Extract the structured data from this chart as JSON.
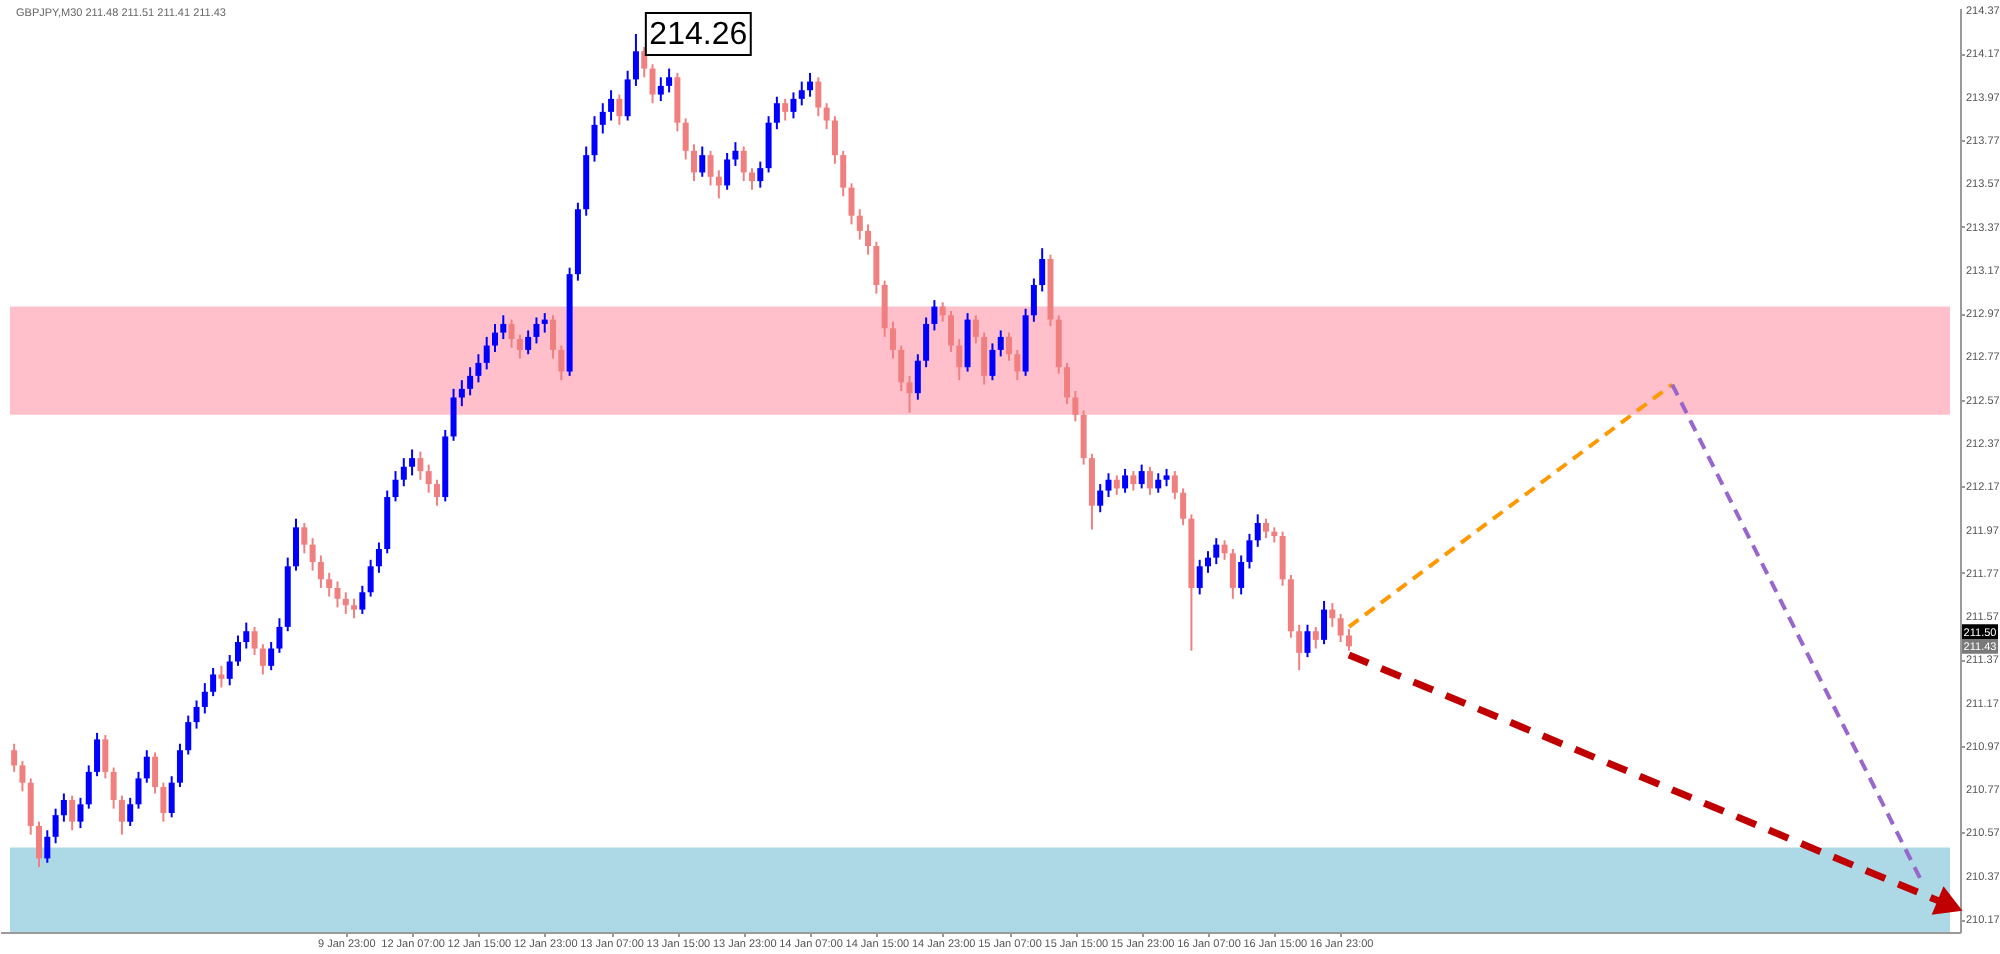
{
  "chart_data": {
    "type": "candlestick",
    "title": "GBPJPY,M30 211.48 211.51 211.41 211.43",
    "categories": [
      null,
      null,
      null,
      null,
      null,
      null,
      null,
      null,
      null,
      null,
      null,
      null,
      null,
      null,
      null,
      null,
      null,
      null,
      null,
      null,
      null,
      null,
      null,
      null,
      null,
      null,
      null,
      null,
      null,
      null,
      null,
      null,
      null,
      null,
      null,
      null,
      null,
      null,
      null,
      null,
      "9 Jan 23:00",
      null,
      null,
      null,
      null,
      null,
      null,
      null,
      "12 Jan 07:00",
      null,
      null,
      null,
      null,
      null,
      null,
      null,
      "12 Jan 15:00",
      null,
      null,
      null,
      null,
      null,
      null,
      null,
      "12 Jan 23:00",
      null,
      null,
      null,
      null,
      null,
      null,
      null,
      "13 Jan 07:00",
      null,
      null,
      null,
      null,
      null,
      null,
      null,
      "13 Jan 15:00",
      null,
      null,
      null,
      null,
      null,
      null,
      null,
      "13 Jan 23:00",
      null,
      null,
      null,
      null,
      null,
      null,
      null,
      "14 Jan 07:00",
      null,
      null,
      null,
      null,
      null,
      null,
      null,
      "14 Jan 15:00",
      null,
      null,
      null,
      null,
      null,
      null,
      null,
      "14 Jan 23:00",
      null,
      null,
      null,
      null,
      null,
      null,
      null,
      "15 Jan 07:00",
      null,
      null,
      null,
      null,
      null,
      null,
      null,
      "15 Jan 15:00",
      null,
      null,
      null,
      null,
      null,
      null,
      null,
      "15 Jan 23:00",
      null,
      null,
      null,
      null,
      null,
      null,
      null,
      "16 Jan 07:00",
      null,
      null,
      null,
      null,
      null,
      null,
      null,
      "16 Jan 15:00",
      null,
      null,
      null,
      null,
      null,
      null,
      null,
      "16 Jan 23:00",
      null,
      null,
      null,
      null,
      null,
      null,
      null,
      null,
      null,
      null,
      null,
      null,
      null,
      null,
      null,
      null,
      null,
      null,
      null,
      null,
      null,
      null,
      null,
      null,
      null,
      null,
      null,
      null,
      null,
      null,
      null,
      null,
      null,
      null,
      null,
      null,
      null,
      null,
      null,
      null,
      null,
      null,
      null,
      null,
      null,
      null,
      null,
      null,
      null,
      null,
      null,
      null,
      null,
      null,
      null,
      null,
      null,
      null,
      null,
      null,
      null,
      null,
      null,
      null,
      null,
      null,
      null,
      null,
      null,
      null,
      null,
      null,
      null
    ],
    "ohlc": [
      [
        210.95,
        210.98,
        210.85,
        210.88
      ],
      [
        210.88,
        210.9,
        210.76,
        210.8
      ],
      [
        210.8,
        210.82,
        210.56,
        210.6
      ],
      [
        210.6,
        210.62,
        210.41,
        210.45
      ],
      [
        210.45,
        210.58,
        210.43,
        210.55
      ],
      [
        210.55,
        210.68,
        210.52,
        210.65
      ],
      [
        210.65,
        210.75,
        210.62,
        210.72
      ],
      [
        210.72,
        210.74,
        210.58,
        210.62
      ],
      [
        210.62,
        210.73,
        210.59,
        210.7
      ],
      [
        210.7,
        210.88,
        210.68,
        210.85
      ],
      [
        210.85,
        211.03,
        210.83,
        211.0
      ],
      [
        211.0,
        211.02,
        210.82,
        210.85
      ],
      [
        210.85,
        210.87,
        210.68,
        210.72
      ],
      [
        210.72,
        210.74,
        210.56,
        210.62
      ],
      [
        210.62,
        210.73,
        210.6,
        210.7
      ],
      [
        210.7,
        210.85,
        210.68,
        210.82
      ],
      [
        210.82,
        210.95,
        210.8,
        210.92
      ],
      [
        210.92,
        210.94,
        210.75,
        210.78
      ],
      [
        210.78,
        210.8,
        210.62,
        210.66
      ],
      [
        210.66,
        210.83,
        210.64,
        210.8
      ],
      [
        210.8,
        210.98,
        210.78,
        210.95
      ],
      [
        210.95,
        211.11,
        210.93,
        211.08
      ],
      [
        211.08,
        211.18,
        211.05,
        211.15
      ],
      [
        211.15,
        211.26,
        211.12,
        211.22
      ],
      [
        211.22,
        211.33,
        211.2,
        211.3
      ],
      [
        211.3,
        211.34,
        211.24,
        211.28
      ],
      [
        211.28,
        211.39,
        211.25,
        211.36
      ],
      [
        211.36,
        211.48,
        211.34,
        211.45
      ],
      [
        211.45,
        211.54,
        211.42,
        211.5
      ],
      [
        211.5,
        211.52,
        211.39,
        211.42
      ],
      [
        211.42,
        211.44,
        211.3,
        211.34
      ],
      [
        211.34,
        211.45,
        211.32,
        211.42
      ],
      [
        211.42,
        211.56,
        211.4,
        211.52
      ],
      [
        211.52,
        211.84,
        211.5,
        211.8
      ],
      [
        211.8,
        212.02,
        211.78,
        211.98
      ],
      [
        211.98,
        212.0,
        211.86,
        211.9
      ],
      [
        211.9,
        211.93,
        211.78,
        211.82
      ],
      [
        211.82,
        211.85,
        211.7,
        211.74
      ],
      [
        211.74,
        211.77,
        211.66,
        211.7
      ],
      [
        211.7,
        211.73,
        211.61,
        211.65
      ],
      [
        211.65,
        211.68,
        211.58,
        211.62
      ],
      [
        211.62,
        211.65,
        211.56,
        211.6
      ],
      [
        211.6,
        211.71,
        211.58,
        211.68
      ],
      [
        211.68,
        211.83,
        211.66,
        211.8
      ],
      [
        211.8,
        211.91,
        211.77,
        211.88
      ],
      [
        211.88,
        212.15,
        211.86,
        212.12
      ],
      [
        212.12,
        212.24,
        212.1,
        212.2
      ],
      [
        212.2,
        212.3,
        212.17,
        212.26
      ],
      [
        212.26,
        212.34,
        212.22,
        212.3
      ],
      [
        212.3,
        212.33,
        212.2,
        212.24
      ],
      [
        212.24,
        212.27,
        212.14,
        212.18
      ],
      [
        212.18,
        212.2,
        212.08,
        212.12
      ],
      [
        212.12,
        212.43,
        212.1,
        212.4
      ],
      [
        212.4,
        212.62,
        212.38,
        212.58
      ],
      [
        212.58,
        212.66,
        212.54,
        212.62
      ],
      [
        212.62,
        212.72,
        212.59,
        212.68
      ],
      [
        212.68,
        212.78,
        212.65,
        212.74
      ],
      [
        212.74,
        212.86,
        212.71,
        212.82
      ],
      [
        212.82,
        212.92,
        212.79,
        212.88
      ],
      [
        212.88,
        212.96,
        212.85,
        212.92
      ],
      [
        212.92,
        212.94,
        212.81,
        212.85
      ],
      [
        212.85,
        212.87,
        212.76,
        212.8
      ],
      [
        212.8,
        212.89,
        212.78,
        212.86
      ],
      [
        212.86,
        212.95,
        212.83,
        212.92
      ],
      [
        212.92,
        212.97,
        212.88,
        212.94
      ],
      [
        212.94,
        212.96,
        212.76,
        212.8
      ],
      [
        212.8,
        212.82,
        212.66,
        212.7
      ],
      [
        212.7,
        213.18,
        212.68,
        213.15
      ],
      [
        213.15,
        213.48,
        213.12,
        213.45
      ],
      [
        213.45,
        213.74,
        213.42,
        213.7
      ],
      [
        213.7,
        213.88,
        213.67,
        213.84
      ],
      [
        213.84,
        213.94,
        213.8,
        213.9
      ],
      [
        213.9,
        214.0,
        213.86,
        213.96
      ],
      [
        213.96,
        213.98,
        213.84,
        213.88
      ],
      [
        213.88,
        214.09,
        213.86,
        214.05
      ],
      [
        214.05,
        214.26,
        214.02,
        214.18
      ],
      [
        214.18,
        214.2,
        214.06,
        214.1
      ],
      [
        214.1,
        214.12,
        213.94,
        213.98
      ],
      [
        213.98,
        214.06,
        213.95,
        214.02
      ],
      [
        214.02,
        214.1,
        213.99,
        214.06
      ],
      [
        214.06,
        214.08,
        213.81,
        213.85
      ],
      [
        213.85,
        213.87,
        213.68,
        213.72
      ],
      [
        213.72,
        213.75,
        213.58,
        213.62
      ],
      [
        213.62,
        213.74,
        213.6,
        213.7
      ],
      [
        213.7,
        213.72,
        213.56,
        213.6
      ],
      [
        213.6,
        213.63,
        213.5,
        213.56
      ],
      [
        213.56,
        213.71,
        213.54,
        213.68
      ],
      [
        213.68,
        213.76,
        213.65,
        213.72
      ],
      [
        213.72,
        213.74,
        213.58,
        213.62
      ],
      [
        213.62,
        213.64,
        213.54,
        213.58
      ],
      [
        213.58,
        213.67,
        213.55,
        213.64
      ],
      [
        213.64,
        213.88,
        213.62,
        213.85
      ],
      [
        213.85,
        213.97,
        213.82,
        213.94
      ],
      [
        213.94,
        213.96,
        213.86,
        213.9
      ],
      [
        213.9,
        213.99,
        213.87,
        213.96
      ],
      [
        213.96,
        214.04,
        213.93,
        214.0
      ],
      [
        214.0,
        214.08,
        213.97,
        214.04
      ],
      [
        214.04,
        214.06,
        213.88,
        213.92
      ],
      [
        213.92,
        213.94,
        213.82,
        213.86
      ],
      [
        213.86,
        213.88,
        213.66,
        213.7
      ],
      [
        213.7,
        213.72,
        213.51,
        213.55
      ],
      [
        213.55,
        213.57,
        213.38,
        213.42
      ],
      [
        213.42,
        213.45,
        213.31,
        213.35
      ],
      [
        213.35,
        213.38,
        213.24,
        213.28
      ],
      [
        213.28,
        213.3,
        213.06,
        213.1
      ],
      [
        213.1,
        213.12,
        212.86,
        212.9
      ],
      [
        212.9,
        212.93,
        212.76,
        212.8
      ],
      [
        212.8,
        212.82,
        212.61,
        212.65
      ],
      [
        212.65,
        212.68,
        212.51,
        212.6
      ],
      [
        212.6,
        212.78,
        212.57,
        212.75
      ],
      [
        212.75,
        212.95,
        212.72,
        212.92
      ],
      [
        212.92,
        213.03,
        212.89,
        213.0
      ],
      [
        213.0,
        213.02,
        212.93,
        212.96
      ],
      [
        212.96,
        212.98,
        212.79,
        212.82
      ],
      [
        212.82,
        212.85,
        212.66,
        212.72
      ],
      [
        212.72,
        212.97,
        212.7,
        212.94
      ],
      [
        212.94,
        212.96,
        212.83,
        212.86
      ],
      [
        212.86,
        212.88,
        212.64,
        212.68
      ],
      [
        212.68,
        212.83,
        212.66,
        212.8
      ],
      [
        212.8,
        212.89,
        212.77,
        212.86
      ],
      [
        212.86,
        212.88,
        212.75,
        212.78
      ],
      [
        212.78,
        212.8,
        212.66,
        212.7
      ],
      [
        212.7,
        212.99,
        212.68,
        212.96
      ],
      [
        212.96,
        213.13,
        212.93,
        213.1
      ],
      [
        213.1,
        213.27,
        213.07,
        213.22
      ],
      [
        213.22,
        213.24,
        212.91,
        212.94
      ],
      [
        212.94,
        212.96,
        212.69,
        212.72
      ],
      [
        212.72,
        212.74,
        212.55,
        212.58
      ],
      [
        212.58,
        212.61,
        212.47,
        212.5
      ],
      [
        212.5,
        212.52,
        212.27,
        212.3
      ],
      [
        212.3,
        212.32,
        211.97,
        212.08
      ],
      [
        212.08,
        212.18,
        212.05,
        212.15
      ],
      [
        212.15,
        212.23,
        212.12,
        212.2
      ],
      [
        212.2,
        212.22,
        212.13,
        212.16
      ],
      [
        212.16,
        212.25,
        212.14,
        212.22
      ],
      [
        212.22,
        212.24,
        212.15,
        212.18
      ],
      [
        212.18,
        212.27,
        212.16,
        212.24
      ],
      [
        212.24,
        212.26,
        212.13,
        212.16
      ],
      [
        212.16,
        212.23,
        212.14,
        212.2
      ],
      [
        212.2,
        212.25,
        212.17,
        212.22
      ],
      [
        212.22,
        212.24,
        212.11,
        212.14
      ],
      [
        212.14,
        212.16,
        211.99,
        212.02
      ],
      [
        212.02,
        212.04,
        211.41,
        211.7
      ],
      [
        211.7,
        211.83,
        211.67,
        211.8
      ],
      [
        211.8,
        211.87,
        211.77,
        211.84
      ],
      [
        211.84,
        211.93,
        211.81,
        211.9
      ],
      [
        211.9,
        211.92,
        211.83,
        211.86
      ],
      [
        211.86,
        211.88,
        211.65,
        211.7
      ],
      [
        211.7,
        211.85,
        211.67,
        211.82
      ],
      [
        211.82,
        211.95,
        211.79,
        211.92
      ],
      [
        211.92,
        212.04,
        211.89,
        212.0
      ],
      [
        212.0,
        212.02,
        211.93,
        211.96
      ],
      [
        211.96,
        211.98,
        211.91,
        211.94
      ],
      [
        211.94,
        211.96,
        211.71,
        211.74
      ],
      [
        211.74,
        211.76,
        211.47,
        211.5
      ],
      [
        211.5,
        211.53,
        211.32,
        211.4
      ],
      [
        211.4,
        211.53,
        211.38,
        211.5
      ],
      [
        211.5,
        211.52,
        211.42,
        211.46
      ],
      [
        211.46,
        211.64,
        211.44,
        211.6
      ],
      [
        211.6,
        211.63,
        211.52,
        211.56
      ],
      [
        211.56,
        211.58,
        211.45,
        211.48
      ],
      [
        211.48,
        211.51,
        211.41,
        211.43
      ],
      null,
      null,
      null,
      null,
      null,
      null,
      null,
      null,
      null,
      null,
      null,
      null,
      null,
      null,
      null,
      null,
      null,
      null,
      null,
      null,
      null,
      null,
      null,
      null,
      null,
      null,
      null,
      null,
      null,
      null,
      null,
      null,
      null,
      null,
      null,
      null,
      null,
      null,
      null,
      null,
      null,
      null,
      null,
      null,
      null,
      null,
      null,
      null,
      null,
      null,
      null,
      null,
      null,
      null,
      null,
      null,
      null,
      null,
      null,
      null,
      null,
      null,
      null,
      null,
      null,
      null,
      null,
      null,
      null,
      null,
      null,
      null
    ],
    "colors": [
      "#f08080",
      "#f08080",
      "#f08080",
      "#f08080",
      "#0000ff",
      "#0000ff",
      "#0000ff",
      "#f08080",
      "#0000ff",
      "#0000ff",
      "#0000ff",
      "#f08080",
      "#f08080",
      "#f08080",
      "#0000ff",
      "#0000ff",
      "#0000ff",
      "#f08080",
      "#f08080",
      "#0000ff",
      "#0000ff",
      "#0000ff",
      "#0000ff",
      "#0000ff",
      "#0000ff",
      "#f08080",
      "#0000ff",
      "#0000ff",
      "#0000ff",
      "#f08080",
      "#f08080",
      "#0000ff",
      "#0000ff",
      "#0000ff",
      "#0000ff",
      "#f08080",
      "#f08080",
      "#f08080",
      "#f08080",
      "#f08080",
      "#f08080",
      "#f08080",
      "#0000ff",
      "#0000ff",
      "#0000ff",
      "#0000ff",
      "#0000ff",
      "#0000ff",
      "#0000ff",
      "#f08080",
      "#f08080",
      "#f08080",
      "#0000ff",
      "#0000ff",
      "#0000ff",
      "#0000ff",
      "#0000ff",
      "#0000ff",
      "#0000ff",
      "#0000ff",
      "#f08080",
      "#f08080",
      "#0000ff",
      "#0000ff",
      "#0000ff",
      "#f08080",
      "#f08080",
      "#0000ff",
      "#0000ff",
      "#0000ff",
      "#0000ff",
      "#0000ff",
      "#0000ff",
      "#f08080",
      "#0000ff",
      "#0000ff",
      "#f08080",
      "#f08080",
      "#0000ff",
      "#0000ff",
      "#f08080",
      "#f08080",
      "#f08080",
      "#0000ff",
      "#f08080",
      "#f08080",
      "#0000ff",
      "#0000ff",
      "#f08080",
      "#f08080",
      "#0000ff",
      "#0000ff",
      "#0000ff",
      "#f08080",
      "#0000ff",
      "#0000ff",
      "#0000ff",
      "#f08080",
      "#f08080",
      "#f08080",
      "#f08080",
      "#f08080",
      "#f08080",
      "#f08080",
      "#f08080",
      "#f08080",
      "#f08080",
      "#f08080",
      "#f08080",
      "#0000ff",
      "#0000ff",
      "#0000ff",
      "#f08080",
      "#f08080",
      "#f08080",
      "#0000ff",
      "#f08080",
      "#f08080",
      "#0000ff",
      "#0000ff",
      "#f08080",
      "#f08080",
      "#0000ff",
      "#0000ff",
      "#0000ff",
      "#f08080",
      "#f08080",
      "#f08080",
      "#f08080",
      "#f08080",
      "#f08080",
      "#0000ff",
      "#0000ff",
      "#f08080",
      "#0000ff",
      "#f08080",
      "#0000ff",
      "#f08080",
      "#0000ff",
      "#0000ff",
      "#f08080",
      "#f08080",
      "#f08080",
      "#0000ff",
      "#0000ff",
      "#0000ff",
      "#f08080",
      "#f08080",
      "#0000ff",
      "#0000ff",
      "#0000ff",
      "#f08080",
      "#f08080",
      "#f08080",
      "#f08080",
      "#f08080",
      "#0000ff",
      "#f08080",
      "#0000ff",
      "#f08080",
      "#f08080",
      "#f08080",
      null,
      null,
      null,
      null,
      null,
      null,
      null,
      null,
      null,
      null,
      null,
      null,
      null,
      null,
      null,
      null,
      null,
      null,
      null,
      null,
      null,
      null,
      null,
      null,
      null,
      null,
      null,
      null,
      null,
      null,
      null,
      null,
      null,
      null,
      null,
      null,
      null,
      null,
      null,
      null,
      null,
      null,
      null,
      null,
      null,
      null,
      null,
      null,
      null,
      null,
      null,
      null,
      null,
      null,
      null,
      null,
      null,
      null,
      null,
      null,
      null,
      null,
      null,
      null,
      null,
      null,
      null,
      null,
      null,
      null,
      null,
      null
    ],
    "series": [
      {
        "type": "line",
        "color": "#ff9900",
        "line_style": "dashed",
        "values": [
          null,
          null,
          null,
          null,
          null,
          null,
          null,
          null,
          null,
          null,
          null,
          null,
          null,
          null,
          null,
          null,
          null,
          null,
          null,
          null,
          null,
          null,
          null,
          null,
          null,
          null,
          null,
          null,
          null,
          null,
          null,
          null,
          null,
          null,
          null,
          null,
          null,
          null,
          null,
          null,
          null,
          null,
          null,
          null,
          null,
          null,
          null,
          null,
          null,
          null,
          null,
          null,
          null,
          null,
          null,
          null,
          null,
          null,
          null,
          null,
          null,
          null,
          null,
          null,
          null,
          null,
          null,
          null,
          null,
          null,
          null,
          null,
          null,
          null,
          null,
          null,
          null,
          null,
          null,
          null,
          null,
          null,
          null,
          null,
          null,
          null,
          null,
          null,
          null,
          null,
          null,
          null,
          null,
          null,
          null,
          null,
          null,
          null,
          null,
          null,
          null,
          null,
          null,
          null,
          null,
          null,
          null,
          null,
          null,
          null,
          null,
          null,
          null,
          null,
          null,
          null,
          null,
          null,
          null,
          null,
          null,
          null,
          null,
          null,
          null,
          null,
          null,
          null,
          null,
          null,
          null,
          null,
          null,
          null,
          null,
          null,
          null,
          null,
          null,
          null,
          null,
          null,
          null,
          null,
          null,
          null,
          null,
          null,
          null,
          null,
          null,
          null,
          null,
          null,
          null,
          null,
          null,
          null,
          null,
          null,
          null,
          211.52,
          null,
          null,
          null,
          null,
          null,
          null,
          null,
          null,
          null,
          null,
          null,
          null,
          null,
          null,
          null,
          null,
          null,
          null,
          null,
          null,
          null,
          null,
          null,
          null,
          null,
          null,
          null,
          null,
          null,
          null,
          null,
          null,
          null,
          null,
          null,
          null,
          null,
          null,
          212.64,
          null,
          null,
          null,
          null,
          null,
          null,
          null,
          null,
          null,
          null,
          null,
          null,
          null,
          null,
          null,
          null,
          null,
          null,
          null,
          null,
          null,
          null,
          null,
          null,
          null,
          null,
          null,
          null,
          null,
          null,
          null,
          null,
          null
        ]
      },
      {
        "type": "line",
        "color": "#9966cc",
        "line_style": "dashed",
        "values": [
          null,
          null,
          null,
          null,
          null,
          null,
          null,
          null,
          null,
          null,
          null,
          null,
          null,
          null,
          null,
          null,
          null,
          null,
          null,
          null,
          null,
          null,
          null,
          null,
          null,
          null,
          null,
          null,
          null,
          null,
          null,
          null,
          null,
          null,
          null,
          null,
          null,
          null,
          null,
          null,
          null,
          null,
          null,
          null,
          null,
          null,
          null,
          null,
          null,
          null,
          null,
          null,
          null,
          null,
          null,
          null,
          null,
          null,
          null,
          null,
          null,
          null,
          null,
          null,
          null,
          null,
          null,
          null,
          null,
          null,
          null,
          null,
          null,
          null,
          null,
          null,
          null,
          null,
          null,
          null,
          null,
          null,
          null,
          null,
          null,
          null,
          null,
          null,
          null,
          null,
          null,
          null,
          null,
          null,
          null,
          null,
          null,
          null,
          null,
          null,
          null,
          null,
          null,
          null,
          null,
          null,
          null,
          null,
          null,
          null,
          null,
          null,
          null,
          null,
          null,
          null,
          null,
          null,
          null,
          null,
          null,
          null,
          null,
          null,
          null,
          null,
          null,
          null,
          null,
          null,
          null,
          null,
          null,
          null,
          null,
          null,
          null,
          null,
          null,
          null,
          null,
          null,
          null,
          null,
          null,
          null,
          null,
          null,
          null,
          null,
          null,
          null,
          null,
          null,
          null,
          null,
          null,
          null,
          null,
          null,
          null,
          null,
          null,
          null,
          null,
          null,
          null,
          null,
          null,
          null,
          null,
          null,
          null,
          null,
          null,
          null,
          null,
          null,
          null,
          null,
          null,
          null,
          null,
          null,
          null,
          null,
          null,
          null,
          null,
          null,
          null,
          null,
          null,
          null,
          null,
          null,
          null,
          null,
          null,
          null,
          212.64,
          null,
          null,
          null,
          null,
          null,
          null,
          null,
          null,
          null,
          null,
          null,
          null,
          null,
          null,
          null,
          null,
          null,
          null,
          null,
          null,
          null,
          null,
          null,
          null,
          null,
          null,
          null,
          null,
          null,
          210.35,
          null,
          null,
          null
        ]
      },
      {
        "type": "line",
        "color": "#c00000",
        "line_style": "dashed",
        "marker": "triangle",
        "values": [
          null,
          null,
          null,
          null,
          null,
          null,
          null,
          null,
          null,
          null,
          null,
          null,
          null,
          null,
          null,
          null,
          null,
          null,
          null,
          null,
          null,
          null,
          null,
          null,
          null,
          null,
          null,
          null,
          null,
          null,
          null,
          null,
          null,
          null,
          null,
          null,
          null,
          null,
          null,
          null,
          null,
          null,
          null,
          null,
          null,
          null,
          null,
          null,
          null,
          null,
          null,
          null,
          null,
          null,
          null,
          null,
          null,
          null,
          null,
          null,
          null,
          null,
          null,
          null,
          null,
          null,
          null,
          null,
          null,
          null,
          null,
          null,
          null,
          null,
          null,
          null,
          null,
          null,
          null,
          null,
          null,
          null,
          null,
          null,
          null,
          null,
          null,
          null,
          null,
          null,
          null,
          null,
          null,
          null,
          null,
          null,
          null,
          null,
          null,
          null,
          null,
          null,
          null,
          null,
          null,
          null,
          null,
          null,
          null,
          null,
          null,
          null,
          null,
          null,
          null,
          null,
          null,
          null,
          null,
          null,
          null,
          null,
          null,
          null,
          null,
          null,
          null,
          null,
          null,
          null,
          null,
          null,
          null,
          null,
          null,
          null,
          null,
          null,
          null,
          null,
          null,
          null,
          null,
          null,
          null,
          null,
          null,
          null,
          null,
          null,
          null,
          null,
          null,
          null,
          null,
          null,
          null,
          null,
          null,
          null,
          null,
          211.39,
          null,
          null,
          null,
          null,
          null,
          null,
          null,
          null,
          null,
          null,
          null,
          null,
          null,
          null,
          null,
          null,
          null,
          null,
          null,
          null,
          null,
          null,
          null,
          null,
          null,
          null,
          null,
          null,
          null,
          null,
          null,
          null,
          null,
          null,
          null,
          null,
          null,
          null,
          null,
          null,
          null,
          null,
          null,
          null,
          null,
          null,
          null,
          null,
          null,
          null,
          null,
          null,
          null,
          null,
          null,
          null,
          null,
          null,
          null,
          null,
          null,
          null,
          null,
          null,
          null,
          null,
          null,
          null,
          null,
          null,
          null,
          210.24
        ]
      }
    ],
    "bands": [
      {
        "axis": "y",
        "from": 212.5,
        "to": 213.0,
        "color": "#ffc0cb"
      },
      {
        "axis": "y",
        "from": 210.11,
        "to": 210.5,
        "color": "#add8e6"
      }
    ],
    "annotations": [
      "214.26",
      "211.50",
      "211.43"
    ],
    "ylim": [
      210.11,
      214.38
    ],
    "yticks": [
      210.17,
      210.37,
      210.57,
      210.77,
      210.97,
      211.17,
      211.37,
      211.57,
      211.77,
      211.97,
      212.17,
      212.37,
      212.57,
      212.77,
      212.97,
      213.17,
      213.37,
      213.57,
      213.77,
      213.97,
      214.17,
      214.37
    ]
  }
}
